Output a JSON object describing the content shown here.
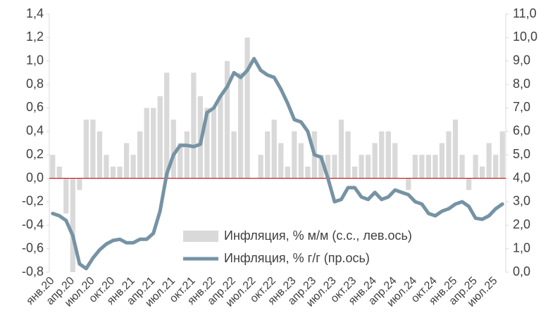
{
  "chart_data": {
    "type": "bar",
    "categories": [
      "янв.20",
      null,
      null,
      "апр.20",
      null,
      null,
      "июл.20",
      null,
      null,
      "окт.20",
      null,
      null,
      "янв.21",
      null,
      null,
      "апр.21",
      null,
      null,
      "июл.21",
      null,
      null,
      "окт.21",
      null,
      null,
      "янв.22",
      null,
      null,
      "апр.22",
      null,
      null,
      "июл.22",
      null,
      null,
      "окт.22",
      null,
      null,
      "янв.23",
      null,
      null,
      "апр.23",
      null,
      null,
      "июл.23",
      null,
      null,
      "окт.23",
      null,
      null,
      "янв.24",
      null,
      null,
      "апр.24",
      null,
      null,
      "июл.24",
      null,
      null,
      "окт.24",
      null,
      null,
      "янв.25",
      null,
      null,
      "апр.25",
      null,
      null,
      "июл.25",
      null
    ],
    "series": [
      {
        "name": "Инфляция, % м/м (с.с., лев.ось)",
        "type": "bar",
        "color": "#d9d9d9",
        "values": [
          0.2,
          0.1,
          -0.3,
          -0.8,
          -0.1,
          0.5,
          0.5,
          0.4,
          0.2,
          0.1,
          0.1,
          0.3,
          0.2,
          0.4,
          0.6,
          0.6,
          0.7,
          0.9,
          0.5,
          0.3,
          0.4,
          0.9,
          0.7,
          0.6,
          0.6,
          0.7,
          1.0,
          0.4,
          0.9,
          1.2,
          0.0,
          0.2,
          0.4,
          0.5,
          0.3,
          0.1,
          0.4,
          0.3,
          0.1,
          0.4,
          0.2,
          0.2,
          0.2,
          0.5,
          0.4,
          0.1,
          0.2,
          0.2,
          0.3,
          0.4,
          0.4,
          0.3,
          0.0,
          -0.1,
          0.2,
          0.2,
          0.2,
          0.2,
          0.3,
          0.4,
          0.5,
          0.2,
          -0.1,
          0.2,
          0.1,
          0.3,
          0.2,
          0.4
        ]
      },
      {
        "name": "Инфляция, % г/г (пр.ось)",
        "type": "line",
        "axis": "y2",
        "color": "#7693a4",
        "values": [
          2.5,
          2.4,
          2.2,
          1.55,
          0.35,
          0.15,
          0.6,
          0.95,
          1.2,
          1.35,
          1.4,
          1.25,
          1.25,
          1.4,
          1.4,
          1.65,
          2.6,
          4.2,
          5.0,
          5.4,
          5.4,
          5.35,
          5.45,
          6.8,
          7.0,
          7.5,
          7.9,
          8.5,
          8.3,
          8.6,
          9.1,
          8.6,
          8.4,
          8.3,
          7.8,
          7.2,
          6.5,
          6.4,
          6.0,
          5.0,
          4.9,
          4.0,
          3.0,
          3.1,
          3.6,
          3.6,
          3.2,
          3.1,
          3.4,
          3.1,
          3.2,
          3.5,
          3.4,
          3.3,
          3.0,
          2.9,
          2.5,
          2.4,
          2.6,
          2.7,
          2.9,
          3.0,
          2.8,
          2.3,
          2.25,
          2.4,
          2.7,
          2.9
        ]
      }
    ],
    "ylim": [
      -0.8,
      1.4
    ],
    "yticks": [
      {
        "value": -0.8,
        "label": "-0,8"
      },
      {
        "value": -0.6,
        "label": "-0,6"
      },
      {
        "value": -0.4,
        "label": "-0,4"
      },
      {
        "value": -0.2,
        "label": "-0,2"
      },
      {
        "value": 0,
        "label": "0,0"
      },
      {
        "value": 0.2,
        "label": "0,2"
      },
      {
        "value": 0.4,
        "label": "0,4"
      },
      {
        "value": 0.6,
        "label": "0,6"
      },
      {
        "value": 0.8,
        "label": "0,8"
      },
      {
        "value": 1.0,
        "label": "1,0"
      },
      {
        "value": 1.2,
        "label": "1,2"
      },
      {
        "value": 1.4,
        "label": "1,4"
      }
    ],
    "y2lim": [
      0,
      11
    ],
    "y2ticks": [
      {
        "value": 0,
        "label": "0,0"
      },
      {
        "value": 1,
        "label": "1,0"
      },
      {
        "value": 2,
        "label": "2,0"
      },
      {
        "value": 3,
        "label": "3,0"
      },
      {
        "value": 4,
        "label": "4,0"
      },
      {
        "value": 5,
        "label": "5,0"
      },
      {
        "value": 6,
        "label": "6,0"
      },
      {
        "value": 7,
        "label": "7,0"
      },
      {
        "value": 8,
        "label": "8,0"
      },
      {
        "value": 9,
        "label": "9,0"
      },
      {
        "value": 10,
        "label": "10,0"
      },
      {
        "value": 11,
        "label": "11,0"
      }
    ],
    "zero_line_color": "#c00000",
    "legend": "lower right"
  }
}
